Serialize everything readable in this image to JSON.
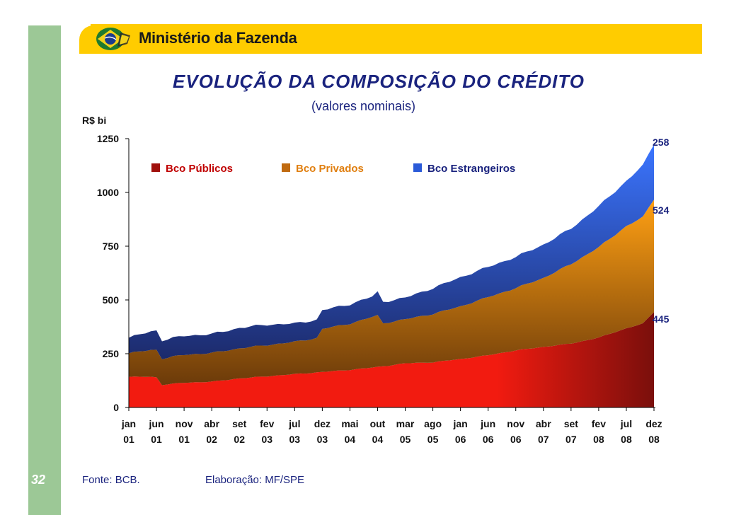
{
  "header": {
    "ministry": "Ministério da Fazenda"
  },
  "title": "EVOLUÇÃO DA COMPOSIÇÃO DO CRÉDITO",
  "subtitle": "(valores nominais)",
  "unit_label": "R$ bi",
  "footer": {
    "page_number": "32",
    "source": "Fonte: BCB.",
    "elaboration": "Elaboração: MF/SPE"
  },
  "colors": {
    "publicos_top": "#f21b10",
    "publicos_bottom": "#7a0f0c",
    "privados_top": "#ffa013",
    "privados_bottom": "#6b3a0a",
    "estrangeiros_top": "#3b75ff",
    "estrangeiros_bottom": "#1c2a6b"
  },
  "chart_data": {
    "type": "area",
    "stacked": true,
    "title": "EVOLUÇÃO DA COMPOSIÇÃO DO CRÉDITO",
    "ylabel": "R$ bi",
    "ylim": [
      0,
      1250
    ],
    "yticks": [
      0,
      250,
      500,
      750,
      1000,
      1250
    ],
    "start": "2001-01",
    "end": "2008-12",
    "tick_labels": [
      {
        "month": "jan",
        "year": "01",
        "index": 0
      },
      {
        "month": "jun",
        "year": "01",
        "index": 5
      },
      {
        "month": "nov",
        "year": "01",
        "index": 10
      },
      {
        "month": "abr",
        "year": "02",
        "index": 15
      },
      {
        "month": "set",
        "year": "02",
        "index": 20
      },
      {
        "month": "fev",
        "year": "03",
        "index": 25
      },
      {
        "month": "jul",
        "year": "03",
        "index": 30
      },
      {
        "month": "dez",
        "year": "03",
        "index": 35
      },
      {
        "month": "mai",
        "year": "04",
        "index": 40
      },
      {
        "month": "out",
        "year": "04",
        "index": 45
      },
      {
        "month": "mar",
        "year": "05",
        "index": 50
      },
      {
        "month": "ago",
        "year": "05",
        "index": 55
      },
      {
        "month": "jan",
        "year": "06",
        "index": 60
      },
      {
        "month": "jun",
        "year": "06",
        "index": 65
      },
      {
        "month": "nov",
        "year": "06",
        "index": 70
      },
      {
        "month": "abr",
        "year": "07",
        "index": 75
      },
      {
        "month": "set",
        "year": "07",
        "index": 80
      },
      {
        "month": "fev",
        "year": "08",
        "index": 85
      },
      {
        "month": "jul",
        "year": "08",
        "index": 90
      },
      {
        "month": "dez",
        "year": "08",
        "index": 95
      }
    ],
    "legend": [
      "Bco Públicos",
      "Bco Privados",
      "Bco Estrangeiros"
    ],
    "series_anchors": [
      {
        "name": "Bco Públicos",
        "points": [
          [
            0,
            142
          ],
          [
            4,
            143
          ],
          [
            5,
            140
          ],
          [
            6,
            105
          ],
          [
            10,
            115
          ],
          [
            15,
            120
          ],
          [
            20,
            135
          ],
          [
            25,
            145
          ],
          [
            30,
            155
          ],
          [
            35,
            165
          ],
          [
            40,
            175
          ],
          [
            45,
            188
          ],
          [
            50,
            205
          ],
          [
            55,
            210
          ],
          [
            60,
            225
          ],
          [
            65,
            243
          ],
          [
            70,
            265
          ],
          [
            75,
            282
          ],
          [
            80,
            297
          ],
          [
            85,
            325
          ],
          [
            90,
            368
          ],
          [
            93,
            390
          ],
          [
            95,
            445
          ]
        ]
      },
      {
        "name": "Bco Privados",
        "points": [
          [
            0,
            110
          ],
          [
            5,
            128
          ],
          [
            6,
            122
          ],
          [
            10,
            130
          ],
          [
            15,
            133
          ],
          [
            20,
            140
          ],
          [
            25,
            145
          ],
          [
            30,
            150
          ],
          [
            34,
            160
          ],
          [
            35,
            200
          ],
          [
            40,
            215
          ],
          [
            44,
            235
          ],
          [
            45,
            240
          ],
          [
            46,
            200
          ],
          [
            50,
            205
          ],
          [
            55,
            225
          ],
          [
            60,
            245
          ],
          [
            65,
            270
          ],
          [
            70,
            290
          ],
          [
            75,
            320
          ],
          [
            80,
            370
          ],
          [
            85,
            420
          ],
          [
            90,
            475
          ],
          [
            93,
            495
          ],
          [
            95,
            524
          ]
        ]
      },
      {
        "name": "Bco Estrangeiros",
        "points": [
          [
            0,
            72
          ],
          [
            5,
            90
          ],
          [
            6,
            85
          ],
          [
            10,
            88
          ],
          [
            15,
            88
          ],
          [
            20,
            95
          ],
          [
            25,
            95
          ],
          [
            30,
            85
          ],
          [
            34,
            85
          ],
          [
            35,
            87
          ],
          [
            40,
            90
          ],
          [
            44,
            95
          ],
          [
            45,
            108
          ],
          [
            46,
            100
          ],
          [
            50,
            100
          ],
          [
            55,
            120
          ],
          [
            60,
            135
          ],
          [
            65,
            140
          ],
          [
            70,
            145
          ],
          [
            75,
            155
          ],
          [
            80,
            165
          ],
          [
            85,
            190
          ],
          [
            90,
            210
          ],
          [
            93,
            240
          ],
          [
            95,
            258
          ]
        ]
      }
    ],
    "annotations": [
      {
        "text": "258",
        "series": "Bco Estrangeiros"
      },
      {
        "text": "524",
        "series": "Bco Privados"
      },
      {
        "text": "445",
        "series": "Bco Públicos"
      }
    ]
  }
}
